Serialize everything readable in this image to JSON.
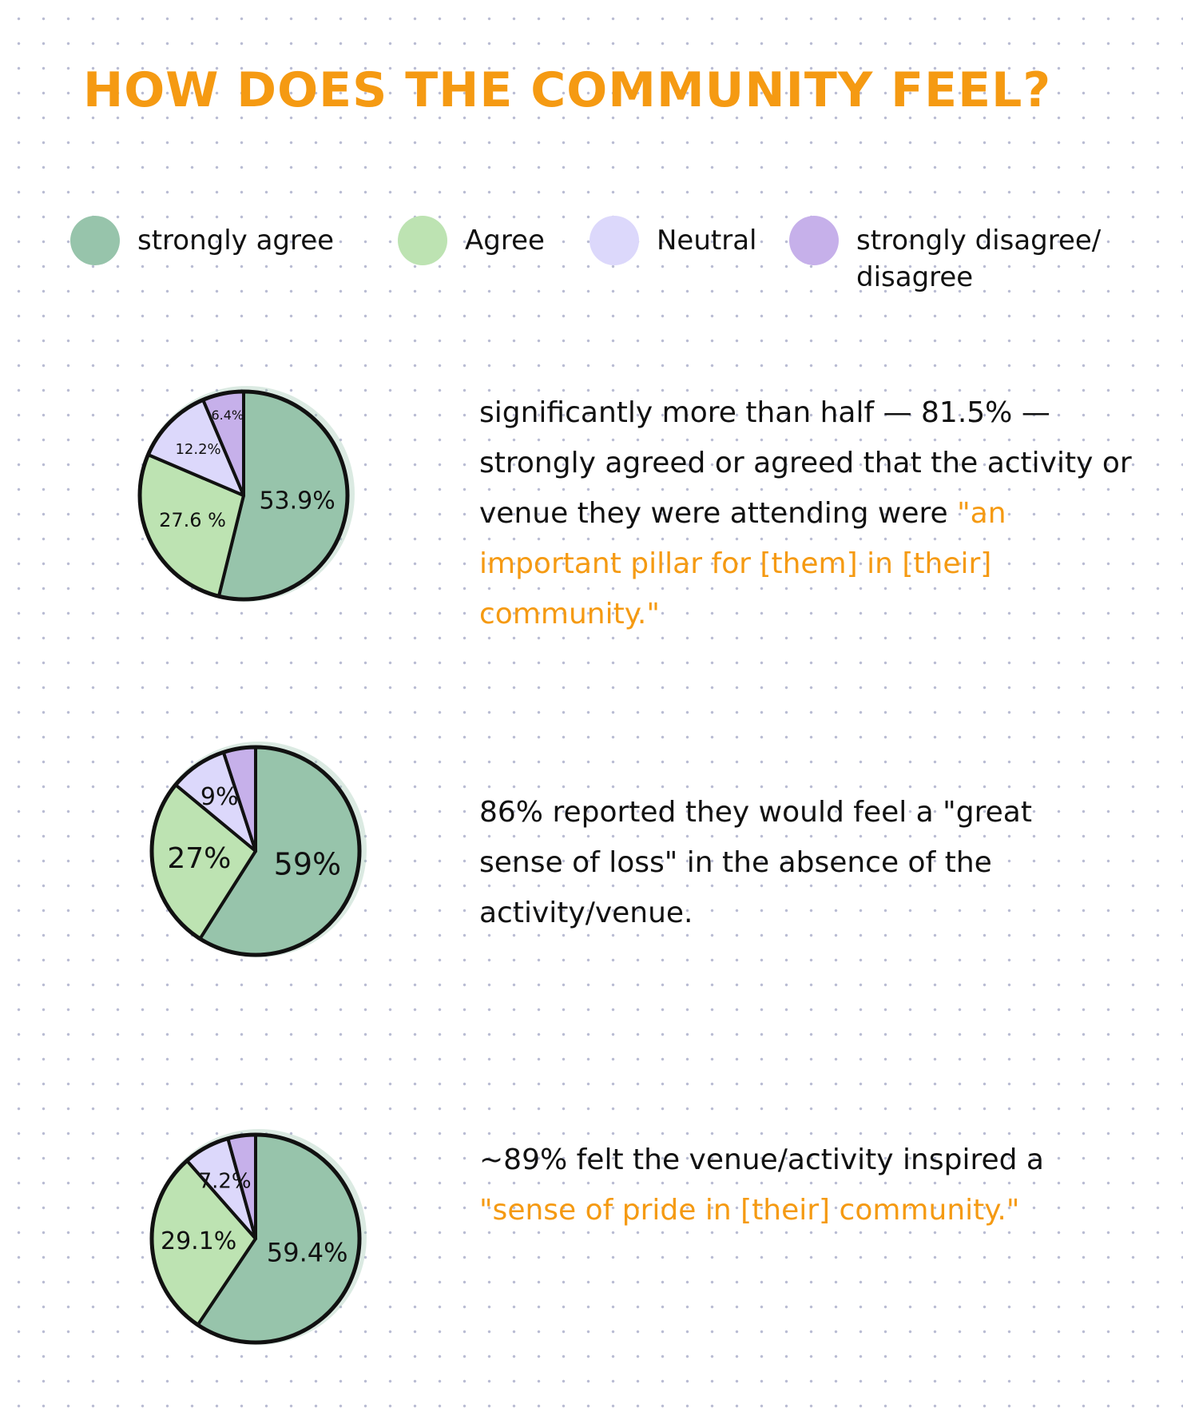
{
  "title": "HOW DOES THE COMMUNITY FEEL?",
  "colors": {
    "strongly_agree": "#97c4ab",
    "agree": "#bde3b2",
    "neutral": "#dcd8fb",
    "disagree": "#c6b0ea",
    "accent": "#f59a12",
    "outline": "#111111"
  },
  "legend": [
    {
      "label": "strongly agree",
      "color": "#97c4ab"
    },
    {
      "label": "Agree",
      "color": "#bde3b2"
    },
    {
      "label": "Neutral",
      "color": "#dcd8fb"
    },
    {
      "label": "strongly disagree/ disagree",
      "color": "#c6b0ea"
    }
  ],
  "chart_data": [
    {
      "type": "pie",
      "categories": [
        "strongly agree",
        "Agree",
        "Neutral",
        "strongly disagree/ disagree"
      ],
      "values": [
        53.9,
        27.6,
        12.2,
        6.4
      ],
      "labels": [
        "53.9%",
        "27.6 %",
        "12.2%",
        "6.4%"
      ]
    },
    {
      "type": "pie",
      "categories": [
        "strongly agree",
        "Agree",
        "Neutral",
        "strongly disagree/ disagree"
      ],
      "values": [
        59,
        27,
        9,
        5
      ],
      "labels": [
        "59%",
        "27%",
        "9%",
        ""
      ]
    },
    {
      "type": "pie",
      "categories": [
        "strongly agree",
        "Agree",
        "Neutral",
        "strongly disagree/ disagree"
      ],
      "values": [
        59.4,
        29.1,
        7.2,
        4.3
      ],
      "labels": [
        "59.4%",
        "29.1%",
        "7.2%",
        ""
      ]
    }
  ],
  "notes": [
    {
      "plain": "significantly more than half — 81.5% — strongly agreed or agreed that the activity or venue they were attending were ",
      "highlight": "\"an important pillar for [them] in [their] community.\""
    },
    {
      "plain": "86% reported they would feel a \"great sense of loss\" in the absence of the activity/venue.",
      "highlight": ""
    },
    {
      "plain": "~89% felt the venue/activity inspired a ",
      "highlight": "\"sense of pride in [their] community.\""
    }
  ]
}
